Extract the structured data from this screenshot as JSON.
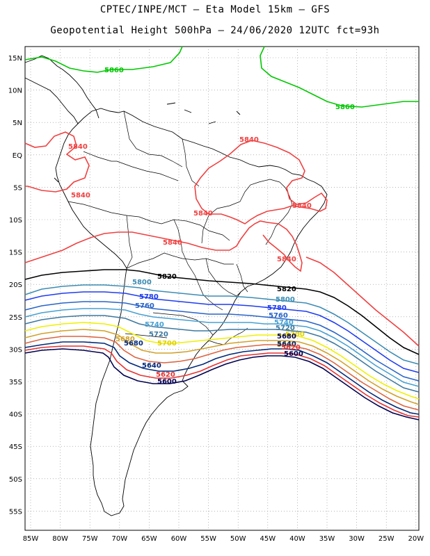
{
  "header": {
    "line1": "CPTEC/INPE/MCT –  Eta Model 15km – GFS",
    "line2": "Geopotential Height 500hPa – 24/06/2020 12UTC fct=93h"
  },
  "axes": {
    "lat_labels": [
      "15N",
      "10N",
      "5N",
      "EQ",
      "5S",
      "10S",
      "15S",
      "20S",
      "25S",
      "30S",
      "35S",
      "40S",
      "45S",
      "50S",
      "55S"
    ],
    "lon_labels": [
      "85W",
      "80W",
      "75W",
      "70W",
      "65W",
      "60W",
      "55W",
      "50W",
      "45W",
      "40W",
      "35W",
      "30W",
      "25W",
      "20W"
    ]
  },
  "colors": {
    "c5860": "#00c800",
    "c5840": "#f04040",
    "c5820": "#000000",
    "c5800": "#3c8cb4",
    "c5780": "#1e3cf0",
    "c5760": "#2864c8",
    "c5740": "#46a0d2",
    "c5720": "#3c78a0",
    "c5700": "#f0f000",
    "c5680": "#d2a028",
    "c5660": "#dc6440",
    "c5640": "#002878",
    "c5620": "#e63232",
    "c5600": "#000050"
  },
  "contour_labels": {
    "v5860": "5860",
    "v5840": "5840",
    "v5820": "5820",
    "v5800": "5800",
    "v5780": "5780",
    "v5760": "5760",
    "v5740": "5740",
    "v5720": "5720",
    "v5700": "5700",
    "v5680": "5680",
    "v5660": "5660",
    "v5640": "5640",
    "v5620": "5620",
    "v5600": "5600"
  }
}
